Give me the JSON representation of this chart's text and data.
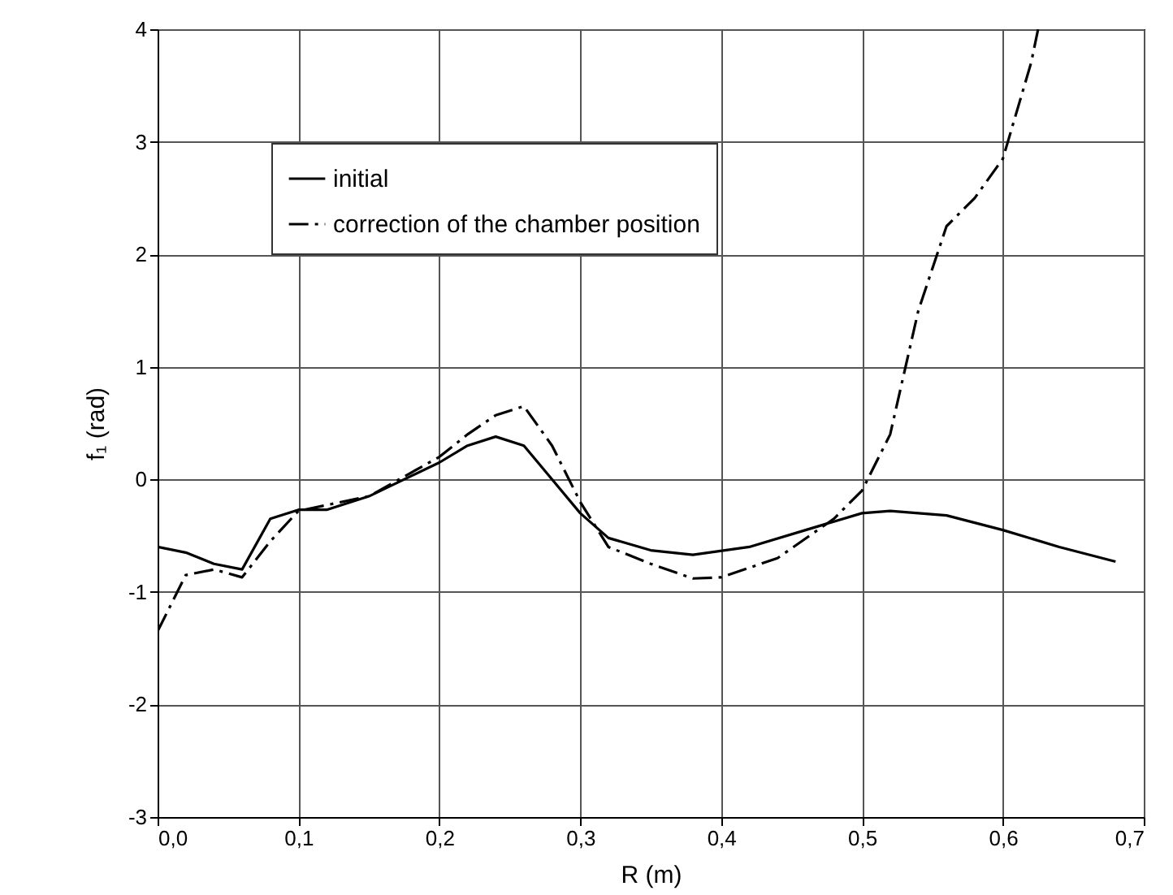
{
  "chart_data": {
    "type": "line",
    "xlabel": "R (m)",
    "ylabel": "f₁ (rad)",
    "xlim": [
      0,
      0.7
    ],
    "ylim": [
      -3,
      4
    ],
    "xticks": [
      {
        "value": 0,
        "label": "0,0"
      },
      {
        "value": 0.1,
        "label": "0,1"
      },
      {
        "value": 0.2,
        "label": "0,2"
      },
      {
        "value": 0.3,
        "label": "0,3"
      },
      {
        "value": 0.4,
        "label": "0,4"
      },
      {
        "value": 0.5,
        "label": "0,5"
      },
      {
        "value": 0.6,
        "label": "0,6"
      },
      {
        "value": 0.7,
        "label": "0,7"
      }
    ],
    "yticks": [
      -3,
      -2,
      -1,
      0,
      1,
      2,
      3,
      4
    ],
    "grid": true,
    "legend": "top left",
    "series": [
      {
        "name": "initial",
        "color": "#000000",
        "line_style": "solid",
        "x": [
          0,
          0.02,
          0.04,
          0.06,
          0.08,
          0.1,
          0.12,
          0.15,
          0.2,
          0.22,
          0.24,
          0.26,
          0.28,
          0.3,
          0.32,
          0.35,
          0.38,
          0.42,
          0.46,
          0.5,
          0.52,
          0.56,
          0.6,
          0.64,
          0.68
        ],
        "values": [
          -0.6,
          -0.65,
          -0.75,
          -0.8,
          -0.35,
          -0.27,
          -0.27,
          -0.15,
          0.15,
          0.3,
          0.38,
          0.3,
          0.0,
          -0.3,
          -0.52,
          -0.63,
          -0.67,
          -0.6,
          -0.45,
          -0.3,
          -0.28,
          -0.32,
          -0.45,
          -0.6,
          -0.73
        ]
      },
      {
        "name": "correction of the chamber position",
        "color": "#000000",
        "line_style": "dashdot",
        "x": [
          0,
          0.02,
          0.04,
          0.06,
          0.08,
          0.1,
          0.15,
          0.2,
          0.22,
          0.24,
          0.26,
          0.28,
          0.3,
          0.32,
          0.35,
          0.38,
          0.4,
          0.44,
          0.48,
          0.5,
          0.52,
          0.54,
          0.56,
          0.58,
          0.6,
          0.62,
          0.625
        ],
        "values": [
          -1.35,
          -0.85,
          -0.8,
          -0.87,
          -0.55,
          -0.28,
          -0.15,
          0.2,
          0.4,
          0.57,
          0.65,
          0.3,
          -0.2,
          -0.6,
          -0.75,
          -0.88,
          -0.87,
          -0.7,
          -0.35,
          -0.1,
          0.4,
          1.5,
          2.25,
          2.5,
          2.85,
          3.7,
          4.0
        ]
      }
    ]
  }
}
